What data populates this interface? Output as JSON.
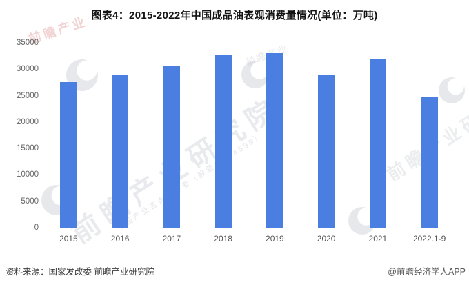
{
  "title": "图表4：2015-2022年中国成品油表观消费量情况(单位：万吨)",
  "chart_data": {
    "type": "bar",
    "title": "图表4：2015-2022年中国成品油表观消费量情况",
    "unit": "万吨",
    "categories": [
      "2015",
      "2016",
      "2017",
      "2018",
      "2019",
      "2020",
      "2021",
      "2022.1-9"
    ],
    "values": [
      27500,
      28900,
      30600,
      32600,
      33000,
      28900,
      31900,
      24700
    ],
    "xlabel": "",
    "ylabel": "",
    "ylim": [
      0,
      35000
    ],
    "yticks": [
      0,
      5000,
      10000,
      15000,
      20000,
      25000,
      30000,
      35000
    ],
    "grid": false,
    "legend": "none",
    "bar_color": "#4A7FE1"
  },
  "footer": {
    "source": "资料来源：国家发改委 前瞻产业研究院",
    "credit": "@前瞻经济学人APP"
  },
  "watermarks": {
    "brand": "前瞻产业研究院",
    "tagline": "中国产业咨询领导者（股票：834599）",
    "brand_short": "前瞻产业"
  }
}
